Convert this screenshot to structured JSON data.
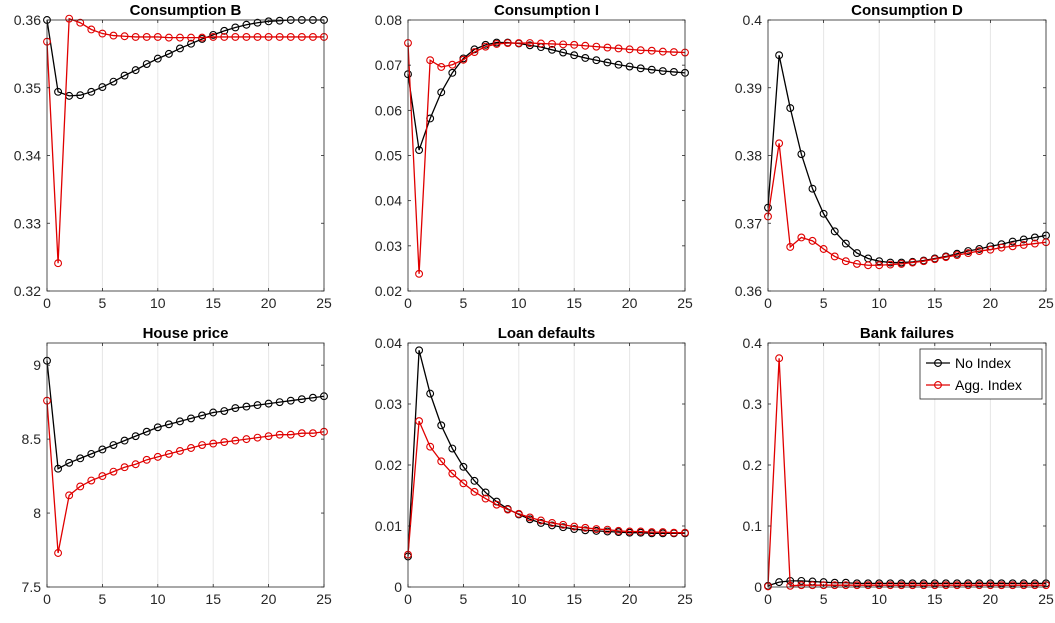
{
  "chart_data": [
    {
      "type": "line",
      "title": "Consumption B",
      "x": [
        0,
        1,
        2,
        3,
        4,
        5,
        6,
        7,
        8,
        9,
        10,
        11,
        12,
        13,
        14,
        15,
        16,
        17,
        18,
        19,
        20,
        21,
        22,
        23,
        24,
        25
      ],
      "xlim": [
        0,
        25
      ],
      "ylim": [
        0.32,
        0.36
      ],
      "yticks": [
        0.32,
        0.33,
        0.34,
        0.35,
        0.36
      ],
      "ytick_labels": [
        "0.32",
        "0.33",
        "0.34",
        "0.35",
        "0.36"
      ],
      "xticks": [
        0,
        5,
        10,
        15,
        20,
        25
      ],
      "xtick_labels": [
        "0",
        "5",
        "10",
        "15",
        "20",
        "25"
      ],
      "grid": "vertical",
      "series": [
        {
          "name": "No Index",
          "color": "#000000",
          "values": [
            0.36,
            0.3494,
            0.3488,
            0.3489,
            0.3494,
            0.3501,
            0.3509,
            0.3518,
            0.3526,
            0.3535,
            0.3543,
            0.355,
            0.3558,
            0.3565,
            0.3572,
            0.3578,
            0.3584,
            0.3589,
            0.3593,
            0.3596,
            0.3598,
            0.3599,
            0.36,
            0.36,
            0.36,
            0.36
          ]
        },
        {
          "name": "Agg. Index",
          "color": "#e00000",
          "values": [
            0.3568,
            0.3241,
            0.3602,
            0.3596,
            0.3586,
            0.358,
            0.3577,
            0.3576,
            0.3575,
            0.3575,
            0.3575,
            0.3574,
            0.3574,
            0.3574,
            0.3574,
            0.3575,
            0.3575,
            0.3575,
            0.3575,
            0.3575,
            0.3575,
            0.3575,
            0.3575,
            0.3575,
            0.3575,
            0.3575
          ]
        }
      ]
    },
    {
      "type": "line",
      "title": "Consumption I",
      "x": [
        0,
        1,
        2,
        3,
        4,
        5,
        6,
        7,
        8,
        9,
        10,
        11,
        12,
        13,
        14,
        15,
        16,
        17,
        18,
        19,
        20,
        21,
        22,
        23,
        24,
        25
      ],
      "xlim": [
        0,
        25
      ],
      "ylim": [
        0.02,
        0.08
      ],
      "yticks": [
        0.02,
        0.03,
        0.04,
        0.05,
        0.06,
        0.07,
        0.08
      ],
      "ytick_labels": [
        "0.02",
        "0.03",
        "0.04",
        "0.05",
        "0.06",
        "0.07",
        "0.08"
      ],
      "xticks": [
        0,
        5,
        10,
        15,
        20,
        25
      ],
      "xtick_labels": [
        "0",
        "5",
        "10",
        "15",
        "20",
        "25"
      ],
      "grid": "vertical",
      "series": [
        {
          "name": "No Index",
          "color": "#000000",
          "values": [
            0.068,
            0.0512,
            0.0582,
            0.064,
            0.0683,
            0.0715,
            0.0735,
            0.0745,
            0.075,
            0.075,
            0.0748,
            0.0744,
            0.074,
            0.0734,
            0.0728,
            0.0722,
            0.0716,
            0.0711,
            0.0706,
            0.0701,
            0.0697,
            0.0693,
            0.069,
            0.0687,
            0.0685,
            0.0683
          ]
        },
        {
          "name": "Agg. Index",
          "color": "#e00000",
          "values": [
            0.0749,
            0.0238,
            0.0711,
            0.0696,
            0.0701,
            0.0712,
            0.0729,
            0.0741,
            0.0747,
            0.0749,
            0.0749,
            0.0749,
            0.0748,
            0.0747,
            0.0746,
            0.0745,
            0.0743,
            0.0741,
            0.0739,
            0.0737,
            0.0735,
            0.0733,
            0.0732,
            0.073,
            0.0729,
            0.0728
          ]
        }
      ]
    },
    {
      "type": "line",
      "title": "Consumption D",
      "x": [
        0,
        1,
        2,
        3,
        4,
        5,
        6,
        7,
        8,
        9,
        10,
        11,
        12,
        13,
        14,
        15,
        16,
        17,
        18,
        19,
        20,
        21,
        22,
        23,
        24,
        25
      ],
      "xlim": [
        0,
        25
      ],
      "ylim": [
        0.36,
        0.4
      ],
      "yticks": [
        0.36,
        0.37,
        0.38,
        0.39,
        0.4
      ],
      "ytick_labels": [
        "0.36",
        "0.37",
        "0.38",
        "0.39",
        "0.4"
      ],
      "xticks": [
        0,
        5,
        10,
        15,
        20,
        25
      ],
      "xtick_labels": [
        "0",
        "5",
        "10",
        "15",
        "20",
        "25"
      ],
      "grid": "vertical",
      "series": [
        {
          "name": "No Index",
          "color": "#000000",
          "values": [
            0.3723,
            0.3948,
            0.387,
            0.3802,
            0.3751,
            0.3714,
            0.3688,
            0.367,
            0.3656,
            0.3648,
            0.3644,
            0.3642,
            0.3642,
            0.3643,
            0.3645,
            0.3648,
            0.3651,
            0.3655,
            0.3659,
            0.3662,
            0.3666,
            0.3669,
            0.3673,
            0.3676,
            0.3679,
            0.3682
          ]
        },
        {
          "name": "Agg. Index",
          "color": "#e00000",
          "values": [
            0.371,
            0.3818,
            0.3665,
            0.3679,
            0.3674,
            0.3662,
            0.3651,
            0.3644,
            0.364,
            0.3638,
            0.3638,
            0.3639,
            0.364,
            0.3642,
            0.3644,
            0.3647,
            0.365,
            0.3653,
            0.3656,
            0.3659,
            0.3661,
            0.3664,
            0.3666,
            0.3668,
            0.367,
            0.3672
          ]
        }
      ]
    },
    {
      "type": "line",
      "title": "House price",
      "x": [
        0,
        1,
        2,
        3,
        4,
        5,
        6,
        7,
        8,
        9,
        10,
        11,
        12,
        13,
        14,
        15,
        16,
        17,
        18,
        19,
        20,
        21,
        22,
        23,
        24,
        25
      ],
      "xlim": [
        0,
        25
      ],
      "ylim": [
        7.5,
        9.15
      ],
      "yticks": [
        7.5,
        8,
        8.5,
        9
      ],
      "ytick_labels": [
        "7.5",
        "8",
        "8.5",
        "9"
      ],
      "xticks": [
        0,
        5,
        10,
        15,
        20,
        25
      ],
      "xtick_labels": [
        "0",
        "5",
        "10",
        "15",
        "20",
        "25"
      ],
      "grid": "vertical",
      "series": [
        {
          "name": "No Index",
          "color": "#000000",
          "values": [
            9.03,
            8.3,
            8.34,
            8.37,
            8.4,
            8.43,
            8.46,
            8.49,
            8.52,
            8.55,
            8.58,
            8.6,
            8.62,
            8.64,
            8.66,
            8.68,
            8.69,
            8.71,
            8.72,
            8.73,
            8.74,
            8.75,
            8.76,
            8.77,
            8.78,
            8.79
          ]
        },
        {
          "name": "Agg. Index",
          "color": "#e00000",
          "values": [
            8.76,
            7.73,
            8.12,
            8.18,
            8.22,
            8.25,
            8.28,
            8.31,
            8.33,
            8.36,
            8.38,
            8.4,
            8.42,
            8.44,
            8.46,
            8.47,
            8.48,
            8.49,
            8.5,
            8.51,
            8.52,
            8.53,
            8.53,
            8.54,
            8.54,
            8.55
          ]
        }
      ]
    },
    {
      "type": "line",
      "title": "Loan defaults",
      "x": [
        0,
        1,
        2,
        3,
        4,
        5,
        6,
        7,
        8,
        9,
        10,
        11,
        12,
        13,
        14,
        15,
        16,
        17,
        18,
        19,
        20,
        21,
        22,
        23,
        24,
        25
      ],
      "xlim": [
        0,
        25
      ],
      "ylim": [
        0,
        0.04
      ],
      "yticks": [
        0,
        0.01,
        0.02,
        0.03,
        0.04
      ],
      "ytick_labels": [
        "0",
        "0.01",
        "0.02",
        "0.03",
        "0.04"
      ],
      "xticks": [
        0,
        5,
        10,
        15,
        20,
        25
      ],
      "xtick_labels": [
        "0",
        "5",
        "10",
        "15",
        "20",
        "25"
      ],
      "grid": "vertical",
      "series": [
        {
          "name": "No Index",
          "color": "#000000",
          "values": [
            0.005,
            0.0388,
            0.0317,
            0.0265,
            0.0227,
            0.0197,
            0.0174,
            0.0155,
            0.014,
            0.0128,
            0.0119,
            0.0111,
            0.0105,
            0.0101,
            0.0098,
            0.0095,
            0.0093,
            0.0092,
            0.0091,
            0.009,
            0.0089,
            0.0089,
            0.0088,
            0.0088,
            0.0088,
            0.0088
          ]
        },
        {
          "name": "Agg. Index",
          "color": "#e00000",
          "values": [
            0.0053,
            0.0272,
            0.023,
            0.0206,
            0.0186,
            0.017,
            0.0156,
            0.0145,
            0.0135,
            0.0127,
            0.012,
            0.0114,
            0.0109,
            0.0105,
            0.0102,
            0.0099,
            0.0097,
            0.0095,
            0.0094,
            0.0092,
            0.0091,
            0.0091,
            0.009,
            0.009,
            0.0089,
            0.0089
          ]
        }
      ]
    },
    {
      "type": "line",
      "title": "Bank failures",
      "x": [
        0,
        1,
        2,
        3,
        4,
        5,
        6,
        7,
        8,
        9,
        10,
        11,
        12,
        13,
        14,
        15,
        16,
        17,
        18,
        19,
        20,
        21,
        22,
        23,
        24,
        25
      ],
      "xlim": [
        0,
        25
      ],
      "ylim": [
        0,
        0.4
      ],
      "yticks": [
        0,
        0.1,
        0.2,
        0.3,
        0.4
      ],
      "ytick_labels": [
        "0",
        "0.1",
        "0.2",
        "0.3",
        "0.4"
      ],
      "xticks": [
        0,
        5,
        10,
        15,
        20,
        25
      ],
      "xtick_labels": [
        "0",
        "5",
        "10",
        "15",
        "20",
        "25"
      ],
      "grid": "vertical",
      "legend": {
        "position": "top-right",
        "entries": [
          "No Index",
          "Agg. Index"
        ]
      },
      "series": [
        {
          "name": "No Index",
          "color": "#000000",
          "values": [
            0.002,
            0.008,
            0.01,
            0.01,
            0.009,
            0.008,
            0.007,
            0.007,
            0.006,
            0.006,
            0.006,
            0.006,
            0.006,
            0.006,
            0.006,
            0.006,
            0.006,
            0.006,
            0.006,
            0.006,
            0.006,
            0.006,
            0.006,
            0.006,
            0.006,
            0.006
          ]
        },
        {
          "name": "Agg. Index",
          "color": "#e00000",
          "values": [
            0.001,
            0.375,
            0.002,
            0.003,
            0.003,
            0.003,
            0.003,
            0.003,
            0.003,
            0.003,
            0.003,
            0.003,
            0.003,
            0.003,
            0.003,
            0.003,
            0.003,
            0.003,
            0.003,
            0.003,
            0.003,
            0.003,
            0.003,
            0.003,
            0.003,
            0.003
          ]
        }
      ]
    }
  ]
}
